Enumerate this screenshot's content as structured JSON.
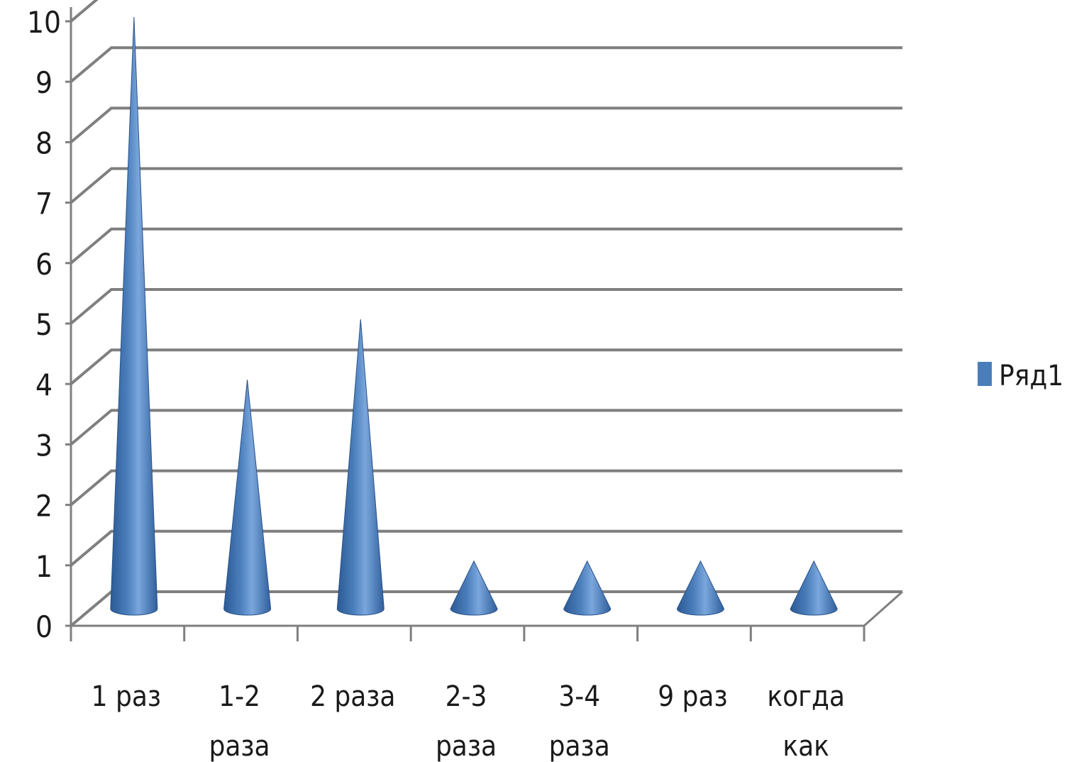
{
  "chart_data": {
    "type": "bar",
    "style": "3d-cone",
    "categories": [
      [
        "1 раз"
      ],
      [
        "1-2",
        "раза"
      ],
      [
        "2 раза"
      ],
      [
        "2-3",
        "раза"
      ],
      [
        "3-4",
        "раза"
      ],
      [
        "9 раз"
      ],
      [
        "когда",
        "как"
      ]
    ],
    "series": [
      {
        "name": "Ряд1",
        "values": [
          10,
          4,
          5,
          1,
          1,
          1,
          1
        ],
        "color": "#4a7ebb"
      }
    ],
    "y_ticks": [
      "0",
      "1",
      "2",
      "3",
      "4",
      "5",
      "6",
      "7",
      "8",
      "9",
      "10"
    ],
    "ylim": [
      0,
      10
    ],
    "grid": true,
    "legend_position": "right"
  }
}
